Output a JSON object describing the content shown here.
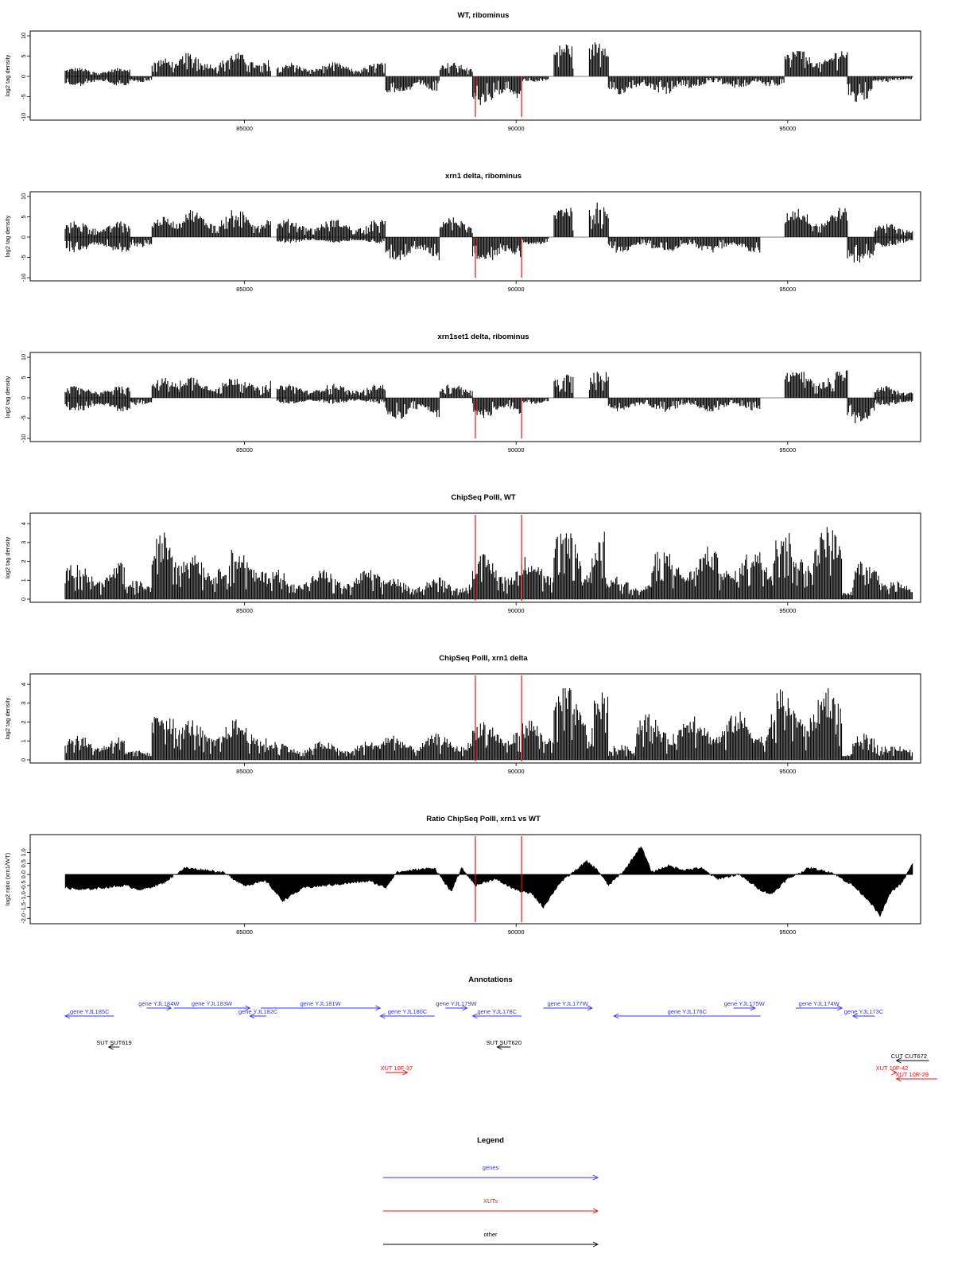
{
  "chart_data": [
    {
      "type": "bar",
      "title": "WT, ribominus",
      "ylabel": "log2 tag density",
      "xlabel": "",
      "xlim": [
        81500,
        97800
      ],
      "ylim": [
        -10,
        10
      ],
      "yticks": [
        -10,
        -5,
        0,
        5,
        10
      ],
      "xticks": [
        85000,
        90000,
        95000
      ],
      "markers": [
        89250,
        90100
      ],
      "marker_span": "axis",
      "segments": [
        {
          "s": 81700,
          "e": 82900,
          "sign": 1,
          "amp": 2.2
        },
        {
          "s": 81700,
          "e": 82900,
          "sign": -1,
          "amp": 2.5
        },
        {
          "s": 82900,
          "e": 83300,
          "sign": -1,
          "amp": 1.5
        },
        {
          "s": 83300,
          "e": 83800,
          "sign": 1,
          "amp": 4.5
        },
        {
          "s": 83800,
          "e": 85500,
          "sign": 1,
          "amp": 6.0
        },
        {
          "s": 85600,
          "e": 87600,
          "sign": 1,
          "amp": 3.5
        },
        {
          "s": 87600,
          "e": 88600,
          "sign": -1,
          "amp": 5.0
        },
        {
          "s": 88600,
          "e": 89200,
          "sign": 1,
          "amp": 3.5
        },
        {
          "s": 89200,
          "e": 90100,
          "sign": -1,
          "amp": 7.5
        },
        {
          "s": 90100,
          "e": 90600,
          "sign": -1,
          "amp": 1.5
        },
        {
          "s": 90700,
          "e": 91050,
          "sign": 1,
          "amp": 8.5
        },
        {
          "s": 91350,
          "e": 91700,
          "sign": 1,
          "amp": 9.5
        },
        {
          "s": 91700,
          "e": 93000,
          "sign": -1,
          "amp": 4.5
        },
        {
          "s": 93000,
          "e": 94500,
          "sign": -1,
          "amp": 3.0
        },
        {
          "s": 94500,
          "e": 94950,
          "sign": -1,
          "amp": 2.5
        },
        {
          "s": 94950,
          "e": 96100,
          "sign": 1,
          "amp": 7.0
        },
        {
          "s": 96100,
          "e": 96600,
          "sign": -1,
          "amp": 6.5
        },
        {
          "s": 96600,
          "e": 97300,
          "sign": -1,
          "amp": 1.5
        }
      ]
    },
    {
      "type": "bar",
      "title": "xrn1 delta, ribominus",
      "ylabel": "log2 tag density",
      "xlabel": "",
      "xlim": [
        81500,
        97800
      ],
      "ylim": [
        -10,
        10
      ],
      "yticks": [
        -10,
        -5,
        0,
        5,
        10
      ],
      "xticks": [
        85000,
        90000,
        95000
      ],
      "markers": [
        89250,
        90100
      ],
      "marker_span": "axis",
      "segments": [
        {
          "s": 81700,
          "e": 82900,
          "sign": 1,
          "amp": 4.0
        },
        {
          "s": 81700,
          "e": 82900,
          "sign": -1,
          "amp": 4.0
        },
        {
          "s": 82900,
          "e": 83300,
          "sign": -1,
          "amp": 2.5
        },
        {
          "s": 83300,
          "e": 83800,
          "sign": 1,
          "amp": 5.0
        },
        {
          "s": 83800,
          "e": 85500,
          "sign": 1,
          "amp": 7.0
        },
        {
          "s": 85600,
          "e": 87600,
          "sign": 1,
          "amp": 4.5
        },
        {
          "s": 85600,
          "e": 87600,
          "sign": -1,
          "amp": 1.5
        },
        {
          "s": 87600,
          "e": 88600,
          "sign": -1,
          "amp": 6.0
        },
        {
          "s": 88600,
          "e": 89200,
          "sign": 1,
          "amp": 5.0
        },
        {
          "s": 89200,
          "e": 90100,
          "sign": -1,
          "amp": 7.0
        },
        {
          "s": 90100,
          "e": 90600,
          "sign": -1,
          "amp": 2.0
        },
        {
          "s": 90700,
          "e": 91050,
          "sign": 1,
          "amp": 8.5
        },
        {
          "s": 91350,
          "e": 91700,
          "sign": 1,
          "amp": 9.0
        },
        {
          "s": 91700,
          "e": 94500,
          "sign": -1,
          "amp": 4.0
        },
        {
          "s": 94950,
          "e": 96100,
          "sign": 1,
          "amp": 7.5
        },
        {
          "s": 96100,
          "e": 96600,
          "sign": -1,
          "amp": 7.0
        },
        {
          "s": 96600,
          "e": 97300,
          "sign": 1,
          "amp": 3.5
        },
        {
          "s": 96600,
          "e": 97300,
          "sign": -1,
          "amp": 2.5
        }
      ]
    },
    {
      "type": "bar",
      "title": "xrn1set1 delta, ribominus",
      "ylabel": "log2 tag density",
      "xlabel": "",
      "xlim": [
        81500,
        97800
      ],
      "ylim": [
        -10,
        10
      ],
      "yticks": [
        -10,
        -5,
        0,
        5,
        10
      ],
      "xticks": [
        85000,
        90000,
        95000
      ],
      "markers": [
        89250,
        90100
      ],
      "marker_span": "axis",
      "segments": [
        {
          "s": 81700,
          "e": 82900,
          "sign": 1,
          "amp": 3.0
        },
        {
          "s": 81700,
          "e": 82900,
          "sign": -1,
          "amp": 3.5
        },
        {
          "s": 82900,
          "e": 83300,
          "sign": -1,
          "amp": 2.0
        },
        {
          "s": 83300,
          "e": 83800,
          "sign": 1,
          "amp": 5.0
        },
        {
          "s": 83800,
          "e": 85500,
          "sign": 1,
          "amp": 5.5
        },
        {
          "s": 85600,
          "e": 87600,
          "sign": 1,
          "amp": 3.5
        },
        {
          "s": 85600,
          "e": 87600,
          "sign": -1,
          "amp": 1.5
        },
        {
          "s": 87600,
          "e": 88600,
          "sign": -1,
          "amp": 5.5
        },
        {
          "s": 88600,
          "e": 89200,
          "sign": 1,
          "amp": 3.5
        },
        {
          "s": 89200,
          "e": 90100,
          "sign": -1,
          "amp": 5.0
        },
        {
          "s": 90100,
          "e": 90600,
          "sign": -1,
          "amp": 1.5
        },
        {
          "s": 90700,
          "e": 91050,
          "sign": 1,
          "amp": 6.0
        },
        {
          "s": 91350,
          "e": 91700,
          "sign": 1,
          "amp": 7.0
        },
        {
          "s": 91700,
          "e": 94500,
          "sign": -1,
          "amp": 3.5
        },
        {
          "s": 94950,
          "e": 96100,
          "sign": 1,
          "amp": 7.5
        },
        {
          "s": 96100,
          "e": 96600,
          "sign": -1,
          "amp": 6.5
        },
        {
          "s": 96600,
          "e": 97300,
          "sign": 1,
          "amp": 3.0
        },
        {
          "s": 96600,
          "e": 97300,
          "sign": -1,
          "amp": 2.0
        }
      ]
    },
    {
      "type": "bar",
      "title": "ChipSeq PolII, WT",
      "ylabel": "log2 tag density",
      "xlabel": "",
      "xlim": [
        81500,
        97800
      ],
      "ylim": [
        0,
        4.3
      ],
      "yticks": [
        0,
        1,
        2,
        3,
        4
      ],
      "xticks": [
        85000,
        90000,
        95000
      ],
      "markers": [
        89250,
        90100
      ],
      "marker_span": "full",
      "segments": [
        {
          "s": 81700,
          "e": 82800,
          "sign": 1,
          "amp": 2.0
        },
        {
          "s": 82800,
          "e": 83300,
          "sign": 1,
          "amp": 1.0
        },
        {
          "s": 83300,
          "e": 83800,
          "sign": 1,
          "amp": 3.6
        },
        {
          "s": 83800,
          "e": 85400,
          "sign": 1,
          "amp": 2.8
        },
        {
          "s": 85400,
          "e": 87500,
          "sign": 1,
          "amp": 1.6
        },
        {
          "s": 87500,
          "e": 89200,
          "sign": 1,
          "amp": 1.2
        },
        {
          "s": 89200,
          "e": 90700,
          "sign": 1,
          "amp": 2.4
        },
        {
          "s": 90700,
          "e": 91200,
          "sign": 1,
          "amp": 4.0
        },
        {
          "s": 91200,
          "e": 91400,
          "sign": 1,
          "amp": 1.5
        },
        {
          "s": 91400,
          "e": 91650,
          "sign": 1,
          "amp": 3.6
        },
        {
          "s": 91650,
          "e": 92500,
          "sign": 1,
          "amp": 1.2
        },
        {
          "s": 92500,
          "e": 94700,
          "sign": 1,
          "amp": 2.8
        },
        {
          "s": 94700,
          "e": 96000,
          "sign": 1,
          "amp": 4.0
        },
        {
          "s": 96000,
          "e": 96200,
          "sign": 1,
          "amp": 0.4
        },
        {
          "s": 96200,
          "e": 96800,
          "sign": 1,
          "amp": 2.2
        },
        {
          "s": 96800,
          "e": 97300,
          "sign": 1,
          "amp": 1.0
        }
      ]
    },
    {
      "type": "bar",
      "title": "ChipSeq PolII, xrn1 delta",
      "ylabel": "log2 tag density",
      "xlabel": "",
      "xlim": [
        81500,
        97800
      ],
      "ylim": [
        0,
        4.3
      ],
      "yticks": [
        0,
        1,
        2,
        3,
        4
      ],
      "xticks": [
        85000,
        90000,
        95000
      ],
      "markers": [
        89250,
        90100
      ],
      "marker_span": "full",
      "segments": [
        {
          "s": 81700,
          "e": 82800,
          "sign": 1,
          "amp": 1.4
        },
        {
          "s": 82800,
          "e": 83300,
          "sign": 1,
          "amp": 0.5
        },
        {
          "s": 83300,
          "e": 83800,
          "sign": 1,
          "amp": 2.8
        },
        {
          "s": 83800,
          "e": 85400,
          "sign": 1,
          "amp": 2.2
        },
        {
          "s": 85400,
          "e": 87500,
          "sign": 1,
          "amp": 1.0
        },
        {
          "s": 87500,
          "e": 89200,
          "sign": 1,
          "amp": 1.4
        },
        {
          "s": 89200,
          "e": 90700,
          "sign": 1,
          "amp": 2.2
        },
        {
          "s": 90700,
          "e": 91300,
          "sign": 1,
          "amp": 4.0
        },
        {
          "s": 91300,
          "e": 91400,
          "sign": 1,
          "amp": 1.2
        },
        {
          "s": 91400,
          "e": 91700,
          "sign": 1,
          "amp": 3.8
        },
        {
          "s": 91700,
          "e": 92200,
          "sign": 1,
          "amp": 0.8
        },
        {
          "s": 92200,
          "e": 94700,
          "sign": 1,
          "amp": 2.6
        },
        {
          "s": 94700,
          "e": 96000,
          "sign": 1,
          "amp": 4.0
        },
        {
          "s": 96000,
          "e": 96200,
          "sign": 1,
          "amp": 0.3
        },
        {
          "s": 96200,
          "e": 96800,
          "sign": 1,
          "amp": 1.4
        },
        {
          "s": 96800,
          "e": 97300,
          "sign": 1,
          "amp": 0.8
        }
      ]
    },
    {
      "type": "area",
      "title": "Ratio ChipSeq PolII, xrn1 vs WT",
      "ylabel": "log2 ratio (xrn1/WT)",
      "xlabel": "",
      "xlim": [
        81500,
        97800
      ],
      "ylim": [
        -2.1,
        1.6
      ],
      "yticks": [
        -2,
        -1.5,
        -1,
        -0.5,
        0,
        0.5,
        1
      ],
      "ytick_labels": [
        "-2.0",
        "-1.5",
        "-1.0",
        "-0.5",
        "0.0",
        "0.5",
        "1.0"
      ],
      "xticks": [
        85000,
        90000,
        95000
      ],
      "markers": [
        89250,
        90100
      ],
      "marker_span": "full",
      "x": [
        81700,
        82000,
        82400,
        82800,
        83100,
        83500,
        83900,
        84300,
        84600,
        85000,
        85400,
        85700,
        86100,
        86500,
        86900,
        87300,
        87600,
        87800,
        88100,
        88500,
        88800,
        89000,
        89250,
        89600,
        90000,
        90300,
        90500,
        90800,
        91100,
        91300,
        91500,
        91700,
        92000,
        92300,
        92500,
        92800,
        93100,
        93400,
        93700,
        94100,
        94500,
        94700,
        95000,
        95400,
        95800,
        96200,
        96500,
        96700,
        96900,
        97100,
        97300
      ],
      "y": [
        -0.6,
        -0.7,
        -0.6,
        -0.5,
        -0.7,
        -0.4,
        0.3,
        0.2,
        0.1,
        -0.5,
        -0.3,
        -1.2,
        -0.6,
        -0.5,
        -0.4,
        -0.3,
        -0.6,
        0.1,
        0.2,
        0.3,
        -0.8,
        0.3,
        -0.5,
        -0.2,
        -0.7,
        -0.9,
        -1.5,
        -0.4,
        0.2,
        0.6,
        0.2,
        -0.5,
        0.2,
        1.3,
        0.1,
        0.4,
        0.2,
        0.3,
        -0.2,
        0.0,
        -0.7,
        -0.9,
        -0.2,
        0.3,
        0.1,
        -0.5,
        -1.2,
        -1.9,
        -0.8,
        -0.4,
        0.5
      ]
    }
  ],
  "annotations": {
    "title": "Annotations",
    "features": [
      {
        "label": "gene YJL185C",
        "type": "gene",
        "start": 81700,
        "end": 82600,
        "strand": "-",
        "row": 2
      },
      {
        "label": "gene YJL184W",
        "type": "gene",
        "start": 83200,
        "end": 83650,
        "strand": "+",
        "row": 1
      },
      {
        "label": "gene YJL183W",
        "type": "gene",
        "start": 83700,
        "end": 85100,
        "strand": "+",
        "row": 1
      },
      {
        "label": "gene YJL182C",
        "type": "gene",
        "start": 85100,
        "end": 85400,
        "strand": "-",
        "row": 2
      },
      {
        "label": "gene YJL181W",
        "type": "gene",
        "start": 85300,
        "end": 87500,
        "strand": "+",
        "row": 1
      },
      {
        "label": "gene YJL180C",
        "type": "gene",
        "start": 87500,
        "end": 88500,
        "strand": "-",
        "row": 2
      },
      {
        "label": "gene YJL179W",
        "type": "gene",
        "start": 88700,
        "end": 89100,
        "strand": "+",
        "row": 1
      },
      {
        "label": "gene YJL178C",
        "type": "gene",
        "start": 89200,
        "end": 90100,
        "strand": "-",
        "row": 2
      },
      {
        "label": "gene YJL177W",
        "type": "gene",
        "start": 90500,
        "end": 91400,
        "strand": "+",
        "row": 1
      },
      {
        "label": "gene YJL176C",
        "type": "gene",
        "start": 91800,
        "end": 94500,
        "strand": "-",
        "row": 2
      },
      {
        "label": "gene YJL175W",
        "type": "gene",
        "start": 94000,
        "end": 94400,
        "strand": "+",
        "row": 1
      },
      {
        "label": "gene YJL174W",
        "type": "gene",
        "start": 95150,
        "end": 96000,
        "strand": "+",
        "row": 1
      },
      {
        "label": "gene YJL173C",
        "type": "gene",
        "start": 96200,
        "end": 96600,
        "strand": "-",
        "row": 2
      },
      {
        "label": "SUT SUT619",
        "type": "other",
        "start": 82500,
        "end": 82700,
        "strand": "-",
        "row": 3
      },
      {
        "label": "SUT SUT620",
        "type": "other",
        "start": 89650,
        "end": 89900,
        "strand": "-",
        "row": 3
      },
      {
        "label": "CUT CUT672",
        "type": "other",
        "start": 97000,
        "end": 97600,
        "strand": "-",
        "row": 4
      },
      {
        "label": "XUT 10F-37",
        "type": "xut",
        "start": 87600,
        "end": 88000,
        "strand": "+",
        "row": 5
      },
      {
        "label": "XUT 10F-42",
        "type": "xut",
        "start": 96950,
        "end": 97000,
        "strand": "+",
        "row": 5
      },
      {
        "label": "XUT 10R-29",
        "type": "xut",
        "start": 97000,
        "end": 97750,
        "strand": "-",
        "row": 6
      }
    ]
  },
  "legend": {
    "title": "Legend",
    "items": [
      {
        "label": "genes",
        "color": "#3333ff"
      },
      {
        "label": "XUTs",
        "color": "#ee1111"
      },
      {
        "label": "other",
        "color": "#000000"
      }
    ]
  },
  "colors": {
    "bars": "#000000",
    "markers": "#ee1111",
    "gene": "#3333ff",
    "xut": "#ee1111",
    "other": "#000000"
  }
}
